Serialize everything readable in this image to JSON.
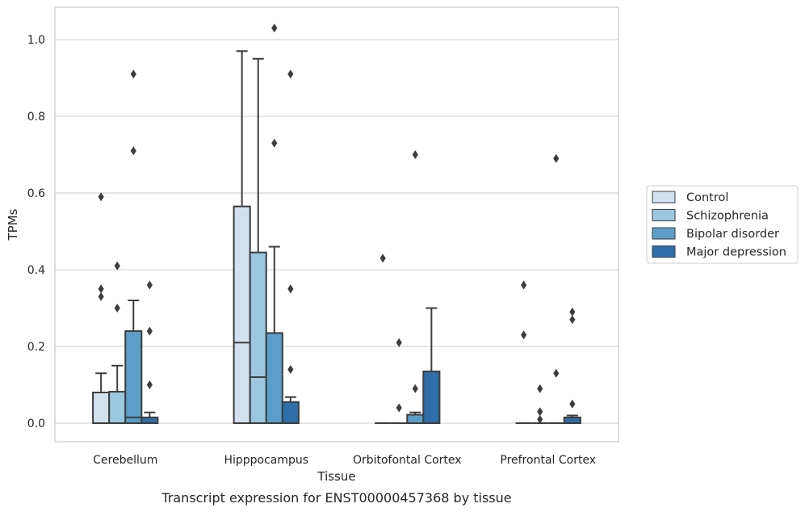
{
  "chart_data": {
    "type": "box",
    "title": "",
    "caption": "Transcript expression for ENST00000457368 by tissue",
    "xlabel": "Tissue",
    "ylabel": "TPMs",
    "ylim": [
      -0.05,
      1.08
    ],
    "yticks": [
      0.0,
      0.2,
      0.4,
      0.6,
      0.8,
      1.0
    ],
    "ytick_labels": [
      "0.0",
      "0.2",
      "0.4",
      "0.6",
      "0.8",
      "1.0"
    ],
    "grid": "horizontal",
    "legend_position": "right",
    "categories": [
      "Cerebellum",
      "Hipppocampus",
      "Orbitofontal Cortex",
      "Prefrontal Cortex"
    ],
    "series": [
      {
        "name": "Control",
        "color": "#d2e1f0",
        "boxes": [
          {
            "q1": 0.0,
            "median": 0.0,
            "q3": 0.08,
            "whisker_low": 0.0,
            "whisker_high": 0.13,
            "outliers": [
              0.33,
              0.35,
              0.59
            ]
          },
          {
            "q1": 0.0,
            "median": 0.21,
            "q3": 0.565,
            "whisker_low": 0.0,
            "whisker_high": 0.97,
            "outliers": []
          },
          {
            "q1": 0.0,
            "median": 0.0,
            "q3": 0.0,
            "whisker_low": 0.0,
            "whisker_high": 0.0,
            "outliers": [
              0.43
            ]
          },
          {
            "q1": 0.0,
            "median": 0.0,
            "q3": 0.0,
            "whisker_low": 0.0,
            "whisker_high": 0.0,
            "outliers": [
              0.23,
              0.36
            ]
          }
        ]
      },
      {
        "name": "Schizophrenia",
        "color": "#9ac8e0",
        "boxes": [
          {
            "q1": 0.0,
            "median": 0.0,
            "q3": 0.082,
            "whisker_low": 0.0,
            "whisker_high": 0.15,
            "outliers": [
              0.3,
              0.41
            ]
          },
          {
            "q1": 0.0,
            "median": 0.12,
            "q3": 0.445,
            "whisker_low": 0.0,
            "whisker_high": 0.95,
            "outliers": []
          },
          {
            "q1": 0.0,
            "median": 0.0,
            "q3": 0.0,
            "whisker_low": 0.0,
            "whisker_high": 0.0,
            "outliers": [
              0.04,
              0.21
            ]
          },
          {
            "q1": 0.0,
            "median": 0.0,
            "q3": 0.0,
            "whisker_low": 0.0,
            "whisker_high": 0.0,
            "outliers": [
              0.01,
              0.03,
              0.09
            ]
          }
        ]
      },
      {
        "name": "Bipolar disorder",
        "color": "#5a9ec9",
        "boxes": [
          {
            "q1": 0.0,
            "median": 0.015,
            "q3": 0.24,
            "whisker_low": 0.0,
            "whisker_high": 0.32,
            "outliers": [
              0.71,
              0.91
            ]
          },
          {
            "q1": 0.0,
            "median": 0.0,
            "q3": 0.235,
            "whisker_low": 0.0,
            "whisker_high": 0.46,
            "outliers": [
              0.73,
              1.03
            ]
          },
          {
            "q1": 0.0,
            "median": 0.0,
            "q3": 0.022,
            "whisker_low": 0.0,
            "whisker_high": 0.028,
            "outliers": [
              0.09,
              0.7
            ]
          },
          {
            "q1": 0.0,
            "median": 0.0,
            "q3": 0.0,
            "whisker_low": 0.0,
            "whisker_high": 0.0,
            "outliers": [
              0.13,
              0.69
            ]
          }
        ]
      },
      {
        "name": "Major depression",
        "color": "#2d6eab",
        "boxes": [
          {
            "q1": 0.0,
            "median": 0.0,
            "q3": 0.015,
            "whisker_low": 0.0,
            "whisker_high": 0.028,
            "outliers": [
              0.1,
              0.24,
              0.36
            ]
          },
          {
            "q1": 0.0,
            "median": 0.0,
            "q3": 0.055,
            "whisker_low": 0.0,
            "whisker_high": 0.068,
            "outliers": [
              0.14,
              0.35,
              0.91
            ]
          },
          {
            "q1": 0.0,
            "median": 0.0,
            "q3": 0.135,
            "whisker_low": 0.0,
            "whisker_high": 0.3,
            "outliers": []
          },
          {
            "q1": 0.0,
            "median": 0.0,
            "q3": 0.015,
            "whisker_low": 0.0,
            "whisker_high": 0.02,
            "outliers": [
              0.05,
              0.27,
              0.29
            ]
          }
        ]
      }
    ]
  }
}
